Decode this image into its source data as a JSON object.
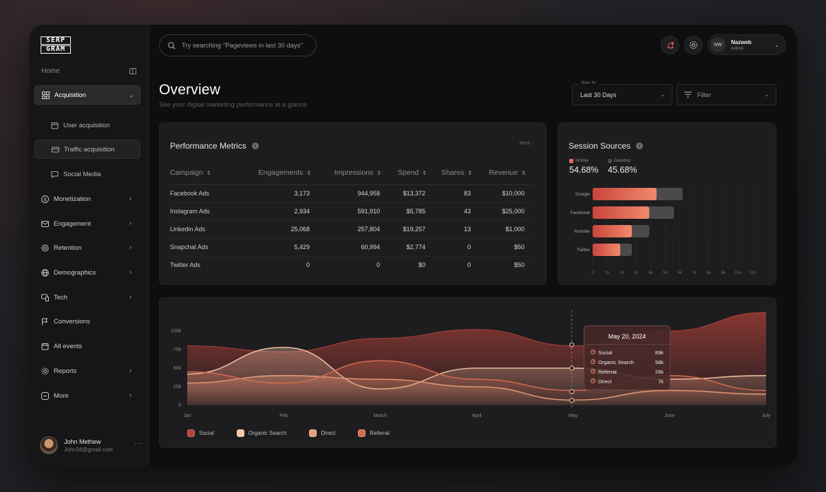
{
  "brand": {
    "line1": "SERP",
    "line2": "GRAM"
  },
  "sidebar": {
    "home_label": "Home",
    "items": [
      {
        "label": "Acquisition",
        "icon": "grid-icon"
      },
      {
        "label": "User acquisition",
        "icon": "calendar-user-icon"
      },
      {
        "label": "Traffic acquisition",
        "icon": "card-icon"
      },
      {
        "label": "Social Media",
        "icon": "chat-icon"
      },
      {
        "label": "Monetization",
        "icon": "dollar-icon"
      },
      {
        "label": "Engagement",
        "icon": "mail-icon"
      },
      {
        "label": "Retention",
        "icon": "retention-icon"
      },
      {
        "label": "Demographics",
        "icon": "globe-icon"
      },
      {
        "label": "Tech",
        "icon": "devices-icon"
      },
      {
        "label": "Conversions",
        "icon": "flag-icon"
      },
      {
        "label": "All events",
        "icon": "calendar-icon"
      },
      {
        "label": "Reports",
        "icon": "gear-icon"
      },
      {
        "label": "More",
        "icon": "more-icon"
      }
    ],
    "user": {
      "name": "John Methew",
      "email": "John34@gmail.com"
    }
  },
  "header": {
    "search_placeholder": "Try searching \"Pageviews in last 30 days\"",
    "profile": {
      "initials": "NW",
      "name": "Nazweb",
      "role": "Admin"
    }
  },
  "overview": {
    "title": "Overview",
    "subtitle": "See your digital marketing performance at a glance",
    "stats_label": "Stats for",
    "stats_value": "Last 30 Days",
    "filter_label": "Filter"
  },
  "performance": {
    "title": "Performance Metrics",
    "more": "More",
    "columns": [
      "Campaign",
      "Engagements",
      "Impressions",
      "Spend",
      "Shares",
      "Revenue"
    ],
    "rows": [
      [
        "Facebook Ads",
        "3,173",
        "944,958",
        "$13,372",
        "83",
        "$10,000"
      ],
      [
        "Instagram Ads",
        "2,934",
        "591,910",
        "$5,785",
        "43",
        "$25,000"
      ],
      [
        "Linkedin Ads",
        "25,068",
        "257,804",
        "$19,257",
        "13",
        "$1,000"
      ],
      [
        "Snapchat Ads",
        "5,429",
        "60,994",
        "$2,774",
        "0",
        "$50"
      ],
      [
        "Twitter Ads",
        "0",
        "0",
        "$0",
        "0",
        "$50"
      ]
    ]
  },
  "sessions": {
    "title": "Session Sources",
    "mobile_label": "Mobile",
    "mobile_pct": "54.68%",
    "desktop_label": "Desktop",
    "desktop_pct": "45.68%",
    "colors": {
      "mobile": "#e2705e",
      "desktop": "#4a4a4c"
    }
  },
  "chart_data": [
    {
      "type": "bar",
      "orientation": "horizontal",
      "stacked": false,
      "categories": [
        "Google",
        "Facebook",
        "Youtube",
        "Twitter"
      ],
      "series": [
        {
          "name": "Mobile",
          "values": [
            4400,
            3900,
            2700,
            1900
          ]
        },
        {
          "name": "Desktop",
          "values": [
            6200,
            5600,
            3900,
            2700
          ]
        }
      ],
      "x_ticks": [
        "0",
        "1k",
        "2k",
        "3k",
        "4k",
        "5k",
        "6k",
        "7k",
        "8k",
        "9k",
        "10k",
        "11k"
      ],
      "xlim": [
        0,
        11000
      ],
      "grid": true
    },
    {
      "type": "area",
      "x": [
        "Jan",
        "Feb",
        "March",
        "April",
        "May",
        "June",
        "July"
      ],
      "y_ticks": [
        "0",
        "25k",
        "50k",
        "75k",
        "100k"
      ],
      "ylim": [
        0,
        100000
      ],
      "series": [
        {
          "name": "Social",
          "color": "#b5423b",
          "values": [
            80000,
            72000,
            90000,
            102000,
            80000,
            100000,
            125000
          ]
        },
        {
          "name": "Organic Search",
          "color": "#f2c6a8",
          "values": [
            42000,
            78000,
            22000,
            50000,
            50000,
            35000,
            40000
          ]
        },
        {
          "name": "Direct",
          "color": "#e8a07d",
          "values": [
            30000,
            40000,
            35000,
            25000,
            7000,
            20000,
            15000
          ]
        },
        {
          "name": "Referral",
          "color": "#d46c52",
          "values": [
            45000,
            30000,
            60000,
            35000,
            20000,
            40000,
            20000
          ]
        }
      ],
      "tooltip": {
        "date": "May 20, 2024",
        "rows": [
          {
            "label": "Social",
            "value": "89k"
          },
          {
            "label": "Organic Search",
            "value": "58k"
          },
          {
            "label": "Referral",
            "value": "26k"
          },
          {
            "label": "Direct",
            "value": "7k"
          }
        ]
      },
      "legend": "bottom-left"
    }
  ]
}
